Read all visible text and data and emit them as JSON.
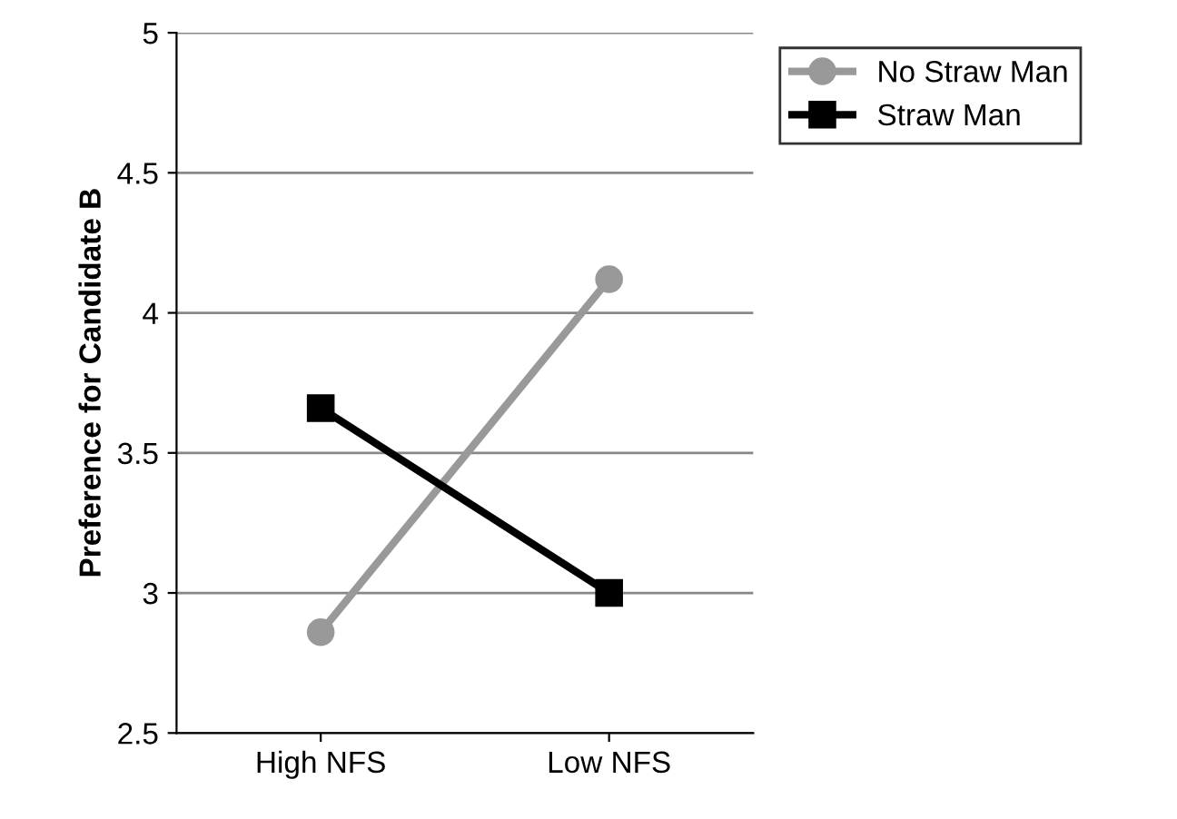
{
  "chart_data": {
    "type": "line",
    "ylabel": "Preference for Candidate B",
    "categories": [
      "High NFS",
      "Low NFS"
    ],
    "series": [
      {
        "name": "No Straw Man",
        "color": "#999999",
        "values": [
          2.86,
          4.12
        ],
        "marker": "circle"
      },
      {
        "name": "Straw Man",
        "color": "#000000",
        "values": [
          3.66,
          3.0
        ],
        "marker": "square"
      }
    ],
    "ylim": [
      2.5,
      5
    ],
    "yticks": [
      2.5,
      3,
      3.5,
      4,
      4.5,
      5
    ],
    "grid": "y",
    "legend": "top right"
  }
}
